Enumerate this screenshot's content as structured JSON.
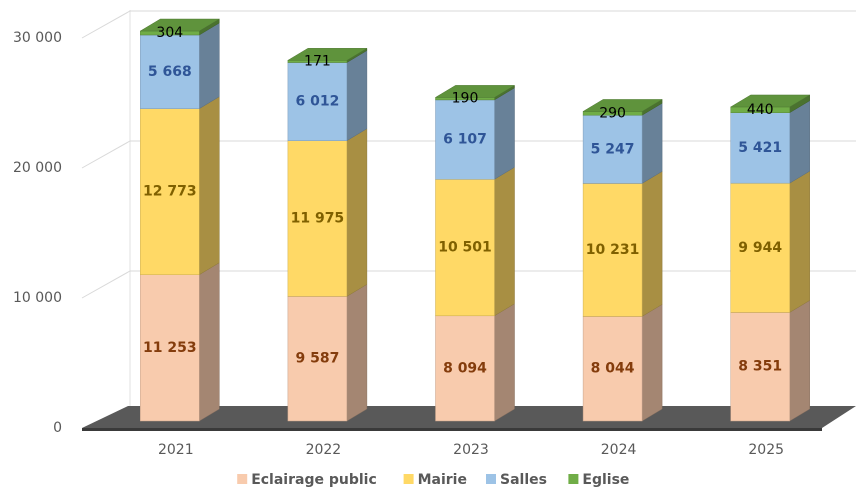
{
  "chart_data": {
    "type": "bar3d_stacked",
    "categories": [
      "2021",
      "2022",
      "2023",
      "2024",
      "2025"
    ],
    "series": [
      {
        "name": "Eclairage public",
        "color": "#f8cbad",
        "label_color": "#843c0c",
        "values": [
          11253,
          9587,
          8094,
          8044,
          8351
        ],
        "value_labels": [
          "11 253",
          "9 587",
          "8 094",
          "8 044",
          "8 351"
        ]
      },
      {
        "name": "Mairie",
        "color": "#ffd966",
        "label_color": "#7f6000",
        "values": [
          12773,
          11975,
          10501,
          10231,
          9944
        ],
        "value_labels": [
          "12 773",
          "11 975",
          "10 501",
          "10 231",
          "9 944"
        ]
      },
      {
        "name": "Salles",
        "color": "#9dc3e6",
        "label_color": "#2f5597",
        "values": [
          5668,
          6012,
          6107,
          5247,
          5421
        ],
        "value_labels": [
          "5 668",
          "6 012",
          "6 107",
          "5 247",
          "5 421"
        ]
      },
      {
        "name": "Eglise",
        "color": "#70ad47",
        "label_color": "#000000",
        "values": [
          304,
          171,
          190,
          290,
          440
        ]
      }
    ],
    "ylim": [
      0,
      30000
    ],
    "yticks": [
      0,
      {
        "value": 10000,
        "label": "10 000"
      },
      {
        "value": 20000,
        "label": "20 000"
      },
      {
        "value": 30000,
        "label": "30 000"
      }
    ],
    "grid": true,
    "legend": "bottom"
  }
}
